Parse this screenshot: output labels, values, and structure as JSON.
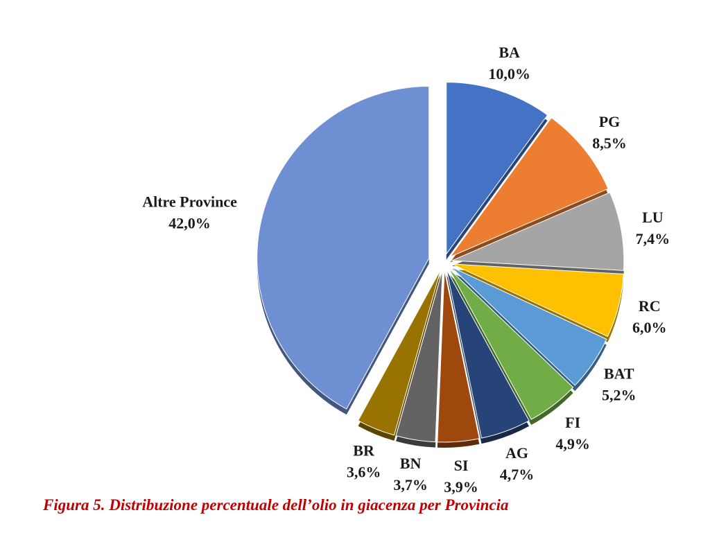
{
  "chart_data": {
    "type": "pie",
    "caption": "Figura 5. Distribuzione percentuale dell’olio in giacenza per Provincia",
    "categories": [
      "BA",
      "PG",
      "LU",
      "RC",
      "BAT",
      "FI",
      "AG",
      "SI",
      "BN",
      "BR",
      "Altre Province"
    ],
    "values": [
      10.0,
      8.5,
      7.4,
      6.0,
      5.2,
      4.9,
      4.7,
      3.9,
      3.7,
      3.6,
      42.0
    ],
    "value_labels": [
      "10,0%",
      "8,5%",
      "7,4%",
      "6,0%",
      "5,2%",
      "4,9%",
      "4,7%",
      "3,9%",
      "3,7%",
      "3,6%",
      "42,0%"
    ],
    "colors": [
      "#4472c4",
      "#ed7d31",
      "#a5a5a5",
      "#ffc000",
      "#5b9bd5",
      "#70ad47",
      "#264478",
      "#9e480e",
      "#636363",
      "#997300",
      "#6e8fd2"
    ]
  }
}
